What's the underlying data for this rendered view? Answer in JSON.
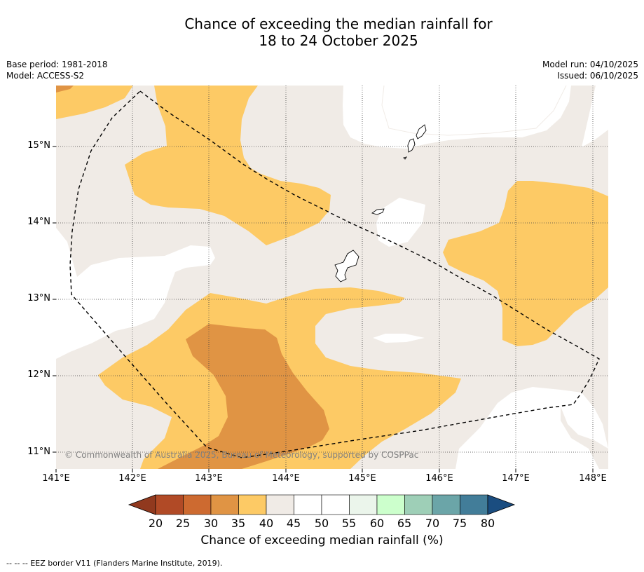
{
  "title": {
    "line1": "Chance of exceeding the median rainfall for",
    "line2": "18 to 24 October 2025"
  },
  "meta_left": {
    "base_period": "Base period: 1981-2018",
    "model": "Model: ACCESS-S2"
  },
  "meta_right": {
    "model_run": "Model run: 04/10/2025",
    "issued": "Issued: 06/10/2025"
  },
  "map": {
    "lat_labels": [
      "15°N",
      "14°N",
      "13°N",
      "12°N",
      "11°N"
    ],
    "lon_labels": [
      "141°E",
      "142°E",
      "143°E",
      "144°E",
      "145°E",
      "146°E",
      "147°E",
      "148°E"
    ],
    "copyright": "© Commonwealth of Australia 2025, Bureau of Meteorology, supported by COSPPac",
    "colors": {
      "c30_35": "#e09444",
      "c35_40": "#fdca65",
      "c40_45": "#f0ebe6",
      "c45_55": "#ffffff"
    }
  },
  "colorbar": {
    "ticks": [
      "20",
      "25",
      "30",
      "35",
      "40",
      "45",
      "50",
      "55",
      "60",
      "65",
      "70",
      "75",
      "80"
    ],
    "colors": [
      "#b14a26",
      "#cd6a30",
      "#e09444",
      "#fdca65",
      "#f0ebe6",
      "#ffffff",
      "#ffffff",
      "#ebf5eb",
      "#ccffcc",
      "#9ecfb7",
      "#6ba5a8",
      "#427d99"
    ],
    "under_color": "#91391e",
    "over_color": "#1a4d80",
    "title": "Chance of exceeding median rainfall (%)"
  },
  "footer": {
    "legend_symbol": "-- -- --",
    "legend_text": "EEZ border V11 (Flanders Marine Institute, 2019)."
  }
}
